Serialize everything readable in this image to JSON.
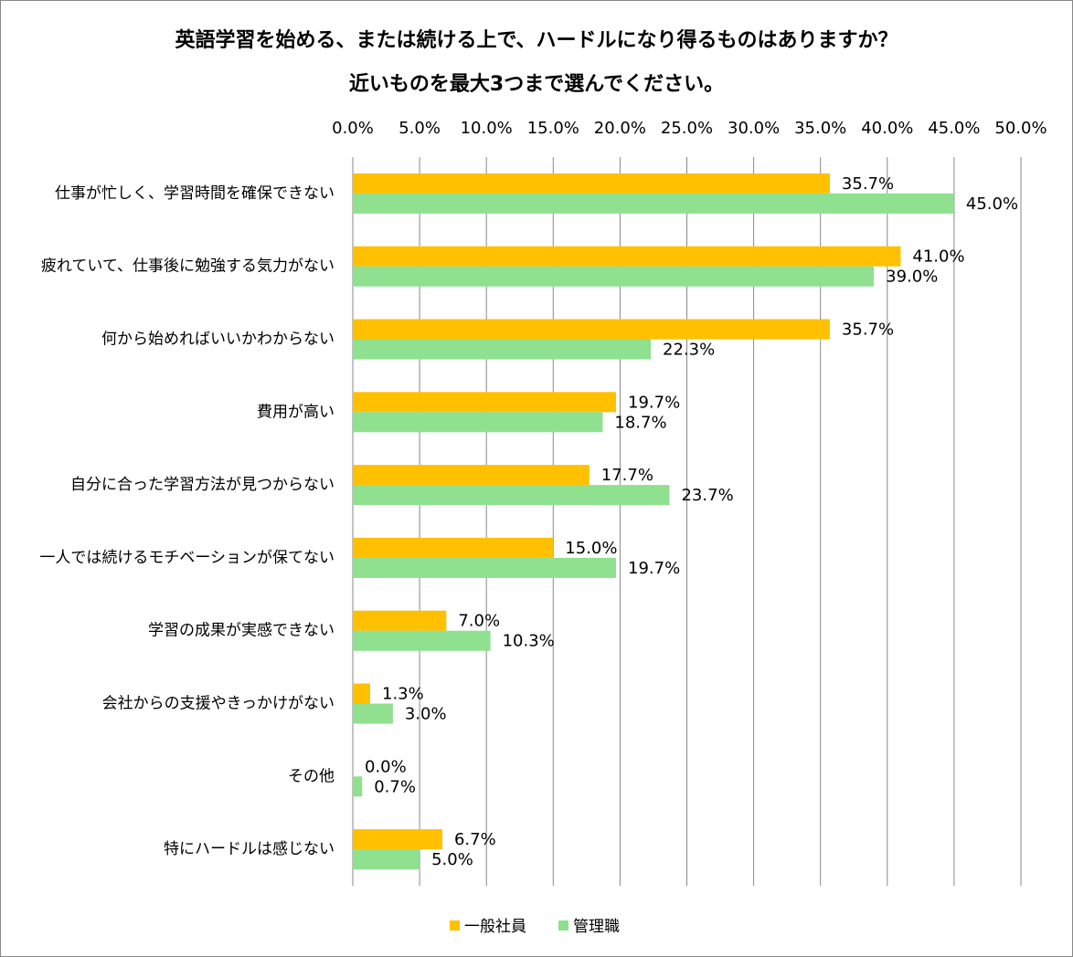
{
  "chart_data": {
    "type": "bar",
    "orientation": "horizontal",
    "title": [
      "英語学習を始める、または続ける上で、ハードルになり得るものはありますか？",
      "近いものを最大3つまで選んでください。"
    ],
    "categories": [
      "仕事が忙しく、学習時間を確保できない",
      "疲れていて、仕事後に勉強する気力がない",
      "何から始めればいいかわからない",
      "費用が高い",
      "自分に合った学習方法が見つからない",
      "一人では続けるモチベーションが保てない",
      "学習の成果が実感できない",
      "会社からの支援やきっかけがない",
      "その他",
      "特にハードルは感じない"
    ],
    "series": [
      {
        "name": "一般社員",
        "color": "#FFC000",
        "values": [
          35.7,
          41.0,
          35.7,
          19.7,
          17.7,
          15.0,
          7.0,
          1.3,
          0.0,
          6.7
        ],
        "value_labels": [
          "35.7%",
          "41.0%",
          "35.7%",
          "19.7%",
          "17.7%",
          "15.0%",
          "7.0%",
          "1.3%",
          "0.0%",
          "6.7%"
        ]
      },
      {
        "name": "管理職",
        "color": "#8FE08F",
        "values": [
          45.0,
          39.0,
          22.3,
          18.7,
          23.7,
          19.7,
          10.3,
          3.0,
          0.7,
          5.0
        ],
        "value_labels": [
          "45.0%",
          "39.0%",
          "22.3%",
          "18.7%",
          "23.7%",
          "19.7%",
          "10.3%",
          "3.0%",
          "0.7%",
          "5.0%"
        ]
      }
    ],
    "xlim": [
      0,
      50
    ],
    "xticks": [
      {
        "value": 0,
        "label": "0.0%"
      },
      {
        "value": 5,
        "label": "5.0%"
      },
      {
        "value": 10,
        "label": "10.0%"
      },
      {
        "value": 15,
        "label": "15.0%"
      },
      {
        "value": 20,
        "label": "20.0%"
      },
      {
        "value": 25,
        "label": "25.0%"
      },
      {
        "value": 30,
        "label": "30.0%"
      },
      {
        "value": 35,
        "label": "35.0%"
      },
      {
        "value": 40,
        "label": "40.0%"
      },
      {
        "value": 45,
        "label": "45.0%"
      },
      {
        "value": 50,
        "label": "50.0%"
      }
    ],
    "grid": true,
    "legend": "bottom"
  }
}
